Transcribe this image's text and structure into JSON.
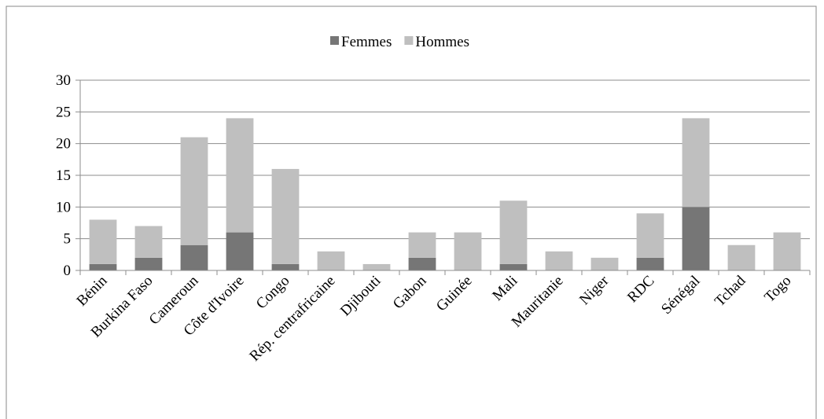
{
  "chart_data": {
    "type": "stacked_bar",
    "categories": [
      "Bénin",
      "Burkina Faso",
      "Cameroun",
      "Côte d'Ivoire",
      "Congo",
      "Rép. centrafricaine",
      "Djibouti",
      "Gabon",
      "Guinée",
      "Mali",
      "Mauritanie",
      "Niger",
      "RDC",
      "Sénégal",
      "Tchad",
      "Togo"
    ],
    "series": [
      {
        "name": "Femmes",
        "color": "#767676",
        "values": [
          1,
          2,
          4,
          6,
          1,
          0,
          0,
          2,
          0,
          1,
          0,
          0,
          2,
          10,
          0,
          0
        ]
      },
      {
        "name": "Hommes",
        "color": "#bfbfbf",
        "values": [
          7,
          5,
          17,
          18,
          15,
          3,
          1,
          4,
          6,
          10,
          3,
          2,
          7,
          14,
          4,
          6
        ]
      }
    ],
    "ylim": [
      0,
      30
    ],
    "yticks": [
      0,
      5,
      10,
      15,
      20,
      25,
      30
    ],
    "grid": true,
    "legend": "top"
  }
}
